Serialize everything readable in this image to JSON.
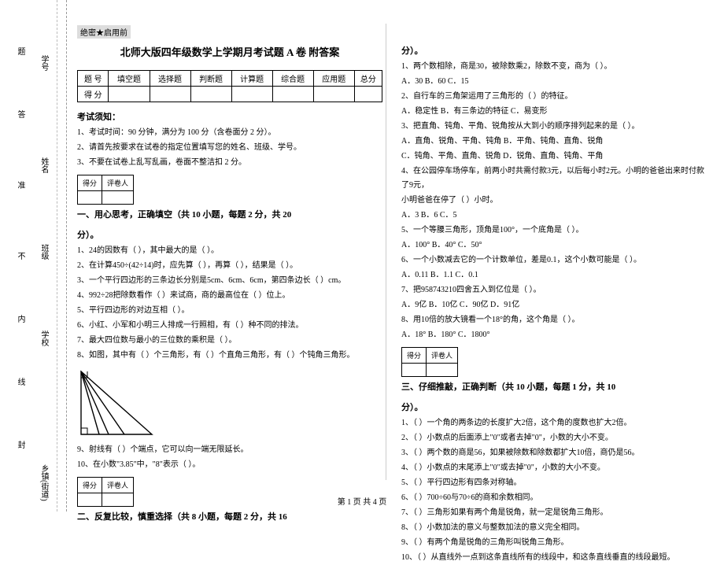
{
  "seal": "绝密★启用前",
  "title": "北师大版四年级数学上学期月考试题 A 卷  附答案",
  "binding": {
    "labels_outer": [
      "乡镇(街道)",
      "学校",
      "班级",
      "姓名",
      "学号"
    ],
    "labels_inner": [
      "封",
      "线",
      "内",
      "不",
      "准",
      "答",
      "题"
    ]
  },
  "score_table": {
    "row_label": [
      "题  号",
      "得  分"
    ],
    "cols": [
      "填空题",
      "选择题",
      "判断题",
      "计算题",
      "综合题",
      "应用题",
      "总分"
    ]
  },
  "notice": {
    "header": "考试须知：",
    "items": [
      "1、考试时间：90 分钟，满分为 100 分（含卷面分 2 分）。",
      "2、请首先按要求在试卷的指定位置填写您的姓名、班级、学号。",
      "3、不要在试卷上乱写乱画，卷面不整洁扣 2 分。"
    ]
  },
  "section1": {
    "badge": [
      "得分",
      "评卷人"
    ],
    "title": "一、用心思考，正确填空（共 10 小题，每题 2 分，共 20",
    "title_cont": "分）。",
    "items": [
      "1、24的因数有（        ），其中最大的是（        ）。",
      "2、在计算450÷(42÷14)时，应先算（        ），再算（        ），结果是（     ）。",
      "3、一个平行四边形的三条边长分别是5cm、6cm、6cm，第四条边长（        ）cm。",
      "4、992÷28把除数看作（     ）来试商，商的最高位在（     ）位上。",
      "5、平行四边形的对边互相（        ）。",
      "6、小红、小军和小明三人排成一行照相，有（        ）种不同的排法。",
      "7、最大四位数与最小的三位数的乘积是（        ）。",
      "8、如图，其中有（     ）个三角形，有（     ）个直角三角形，有（     ）个钝角三角形。"
    ],
    "items_tail": [
      "9、射线有（     ）个端点，它可以向一端无限延长。",
      "10、在小数\"3.85\"中，\"8\"表示（        ）。"
    ]
  },
  "section2": {
    "badge": [
      "得分",
      "评卷人"
    ],
    "title": "二、反复比较，慎重选择（共 8 小题，每题 2 分，共 16",
    "title_cont": "分）。",
    "items": [
      "1、两个数相除，商是30，被除数乘2，除数不变，商为（     ）。",
      "   A．30        B．60        C．15",
      "2、自行车的三角架运用了三角形的（        ）的特征。",
      "   A．稳定性        B．有三条边的特征        C．易变形",
      "3、把直角、钝角、平角、锐角按从大到小的顺序排列起来的是（     ）。",
      "   A．直角、锐角、平角、钝角        B．平角、钝角、直角、锐角",
      "   C．钝角、平角、直角、锐角        D．锐角、直角、钝角、平角",
      "4、在公园停车场停车，前两小时共需付款3元，以后每小时2元。小明的爸爸出来时付款了9元，",
      "小明爸爸在停了（     ）小时。",
      "   A．3        B．6        C．5",
      "5、一个等腰三角形，顶角是100°，一个底角是（     ）。",
      "   A．100°        B．40°        C．50°",
      "6、一个小数减去它的一个计数单位，差是0.1，这个小数可能是（     ）。",
      "   A．0.11        B．1.1        C．0.1",
      "7、把958743210四舍五入到亿位是（     ）。",
      "   A．9亿        B．10亿        C．90亿        D．91亿",
      "8、用10倍的放大镜看一个18°的角，这个角是（     ）。",
      "   A．18°        B．180°        C．1800°"
    ]
  },
  "section3": {
    "badge": [
      "得分",
      "评卷人"
    ],
    "title": "三、仔细推敲，正确判断（共 10 小题，每题 1 分，共 10",
    "title_cont": "分）。",
    "items": [
      "1、（     ）一个角的两条边的长度扩大2倍，这个角的度数也扩大2倍。",
      "2、（     ）小数点的后面添上\"0\"或者去掉\"0\"，小数的大小不变。",
      "3、（     ）两个数的商是56，如果被除数和除数都扩大10倍，商仍是56。",
      "4、（     ）小数点的末尾添上\"0\"或去掉\"0\"，小数的大小不变。",
      "5、（     ）平行四边形有四条对称轴。",
      "6、（     ）700÷60与70÷6的商和余数相同。",
      "7、（     ）三角形如果有两个角是锐角，就一定是锐角三角形。",
      "8、（     ）小数加法的意义与整数加法的意义完全相同。",
      "9、（     ）有两个角是锐角的三角形叫锐角三角形。",
      "10、（     ）从直线外一点到这条直线所有的线段中，和这条直线垂直的线段最短。"
    ]
  },
  "footer": "第 1 页 共 4 页",
  "figure_triangle": {
    "width": 100,
    "height": 90,
    "outer": "5,85 5,5 95,85",
    "inner_lines": [
      "5,5 60,85",
      "5,5 40,85",
      "5,5 28,85"
    ],
    "stroke": "#000",
    "stroke_width": 1.4
  }
}
